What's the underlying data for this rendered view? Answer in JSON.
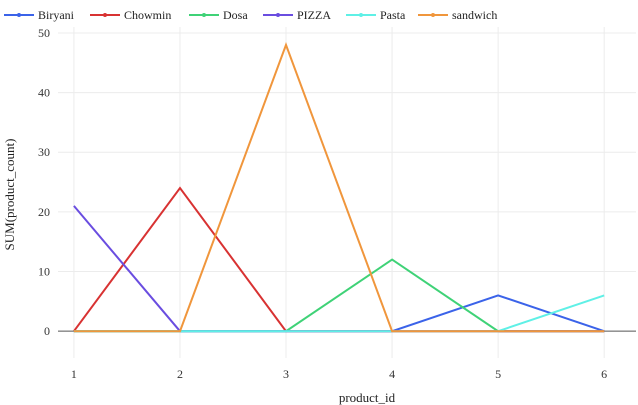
{
  "chart_data": {
    "type": "line",
    "xlabel": "product_id",
    "ylabel": "SUM(product_count)",
    "x": [
      1,
      2,
      3,
      4,
      5,
      6
    ],
    "xlim": [
      0.85,
      6.3
    ],
    "ylim": [
      -4.5,
      51
    ],
    "yticks": [
      0,
      10,
      20,
      30,
      40,
      50
    ],
    "grid": true,
    "legend_position": "top-left",
    "series": [
      {
        "name": "Biryani",
        "color": "#3b63e9",
        "values": [
          0,
          0,
          0,
          0,
          6,
          0
        ]
      },
      {
        "name": "Chowmin",
        "color": "#d83232",
        "values": [
          0,
          24,
          0,
          0,
          0,
          0
        ]
      },
      {
        "name": "Dosa",
        "color": "#3fd277",
        "values": [
          0,
          0,
          0,
          12,
          0,
          0
        ]
      },
      {
        "name": "PIZZA",
        "color": "#6a4de0",
        "values": [
          21,
          0,
          0,
          0,
          0,
          0
        ]
      },
      {
        "name": "Pasta",
        "color": "#5ff0e6",
        "values": [
          0,
          0,
          0,
          0,
          0,
          6
        ]
      },
      {
        "name": "sandwich",
        "color": "#f0963c",
        "values": [
          0,
          0,
          48,
          0,
          0,
          0
        ]
      }
    ]
  }
}
